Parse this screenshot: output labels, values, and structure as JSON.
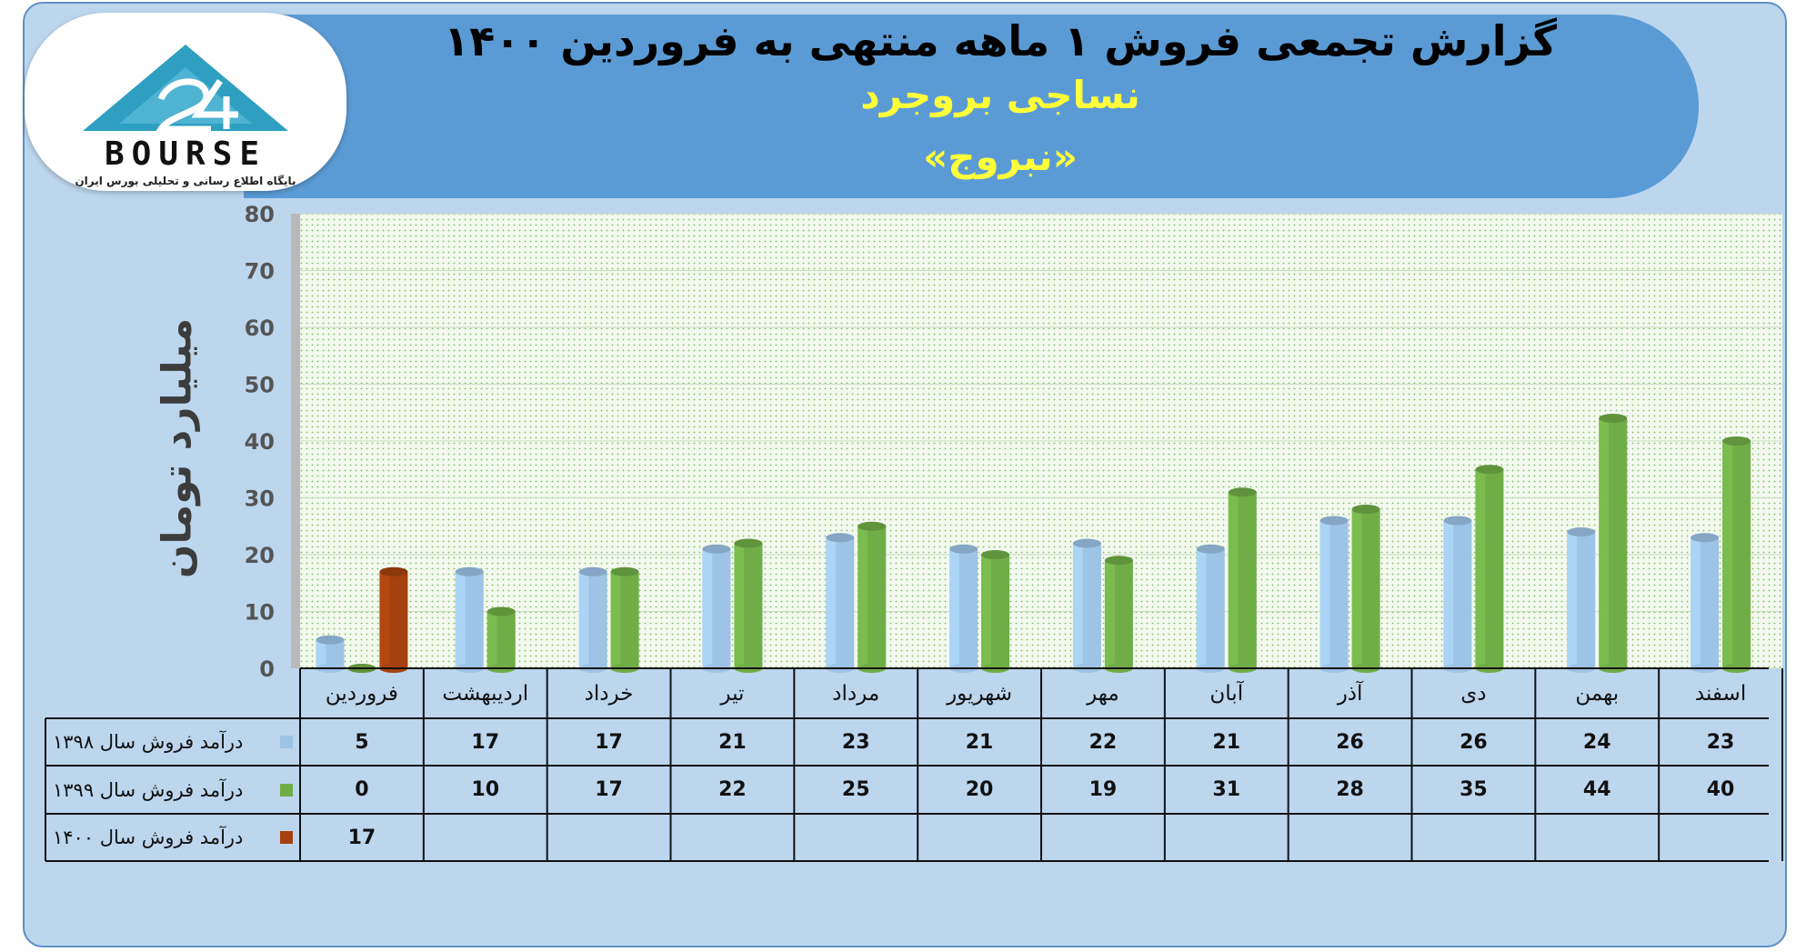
{
  "header": {
    "title": "گزارش تجمعی فروش ۱ ماهه منتهی به فروردین ۱۴۰۰",
    "subtitle": "نساجی بروجرد",
    "ticker": "«نبروج»"
  },
  "logo": {
    "text": "BOURSE",
    "subtext": "پایگاه اطلاع رسانی و تحلیلی بورس ایران"
  },
  "colors": {
    "series_1398": "#9dc3e6",
    "series_1399": "#70ad47",
    "series_1400": "#a5410f",
    "header_bg": "#5b9bd5",
    "subtitle_yellow": "#ffff3a"
  },
  "chart_data": {
    "type": "bar",
    "title": "گزارش تجمعی فروش ۱ ماهه منتهی به فروردین ۱۴۰۰",
    "ylabel": "میلیارد تومان",
    "ylim": [
      0,
      80
    ],
    "yticks": [
      0,
      10,
      20,
      30,
      40,
      50,
      60,
      70,
      80
    ],
    "grid": true,
    "categories": [
      "فروردین",
      "اردیبهشت",
      "خرداد",
      "تیر",
      "مرداد",
      "شهریور",
      "مهر",
      "آبان",
      "آذر",
      "دی",
      "بهمن",
      "اسفند"
    ],
    "series": [
      {
        "name": "درآمد فروش سال ۱۳۹۸",
        "color": "#9dc3e6",
        "values": [
          5,
          17,
          17,
          21,
          23,
          21,
          22,
          21,
          26,
          26,
          24,
          23
        ]
      },
      {
        "name": "درآمد فروش سال ۱۳۹۹",
        "color": "#70ad47",
        "values": [
          0,
          10,
          17,
          22,
          25,
          20,
          19,
          31,
          28,
          35,
          44,
          40
        ]
      },
      {
        "name": "درآمد فروش سال ۱۴۰۰",
        "color": "#a5410f",
        "values": [
          17,
          null,
          null,
          null,
          null,
          null,
          null,
          null,
          null,
          null,
          null,
          null
        ]
      }
    ]
  }
}
